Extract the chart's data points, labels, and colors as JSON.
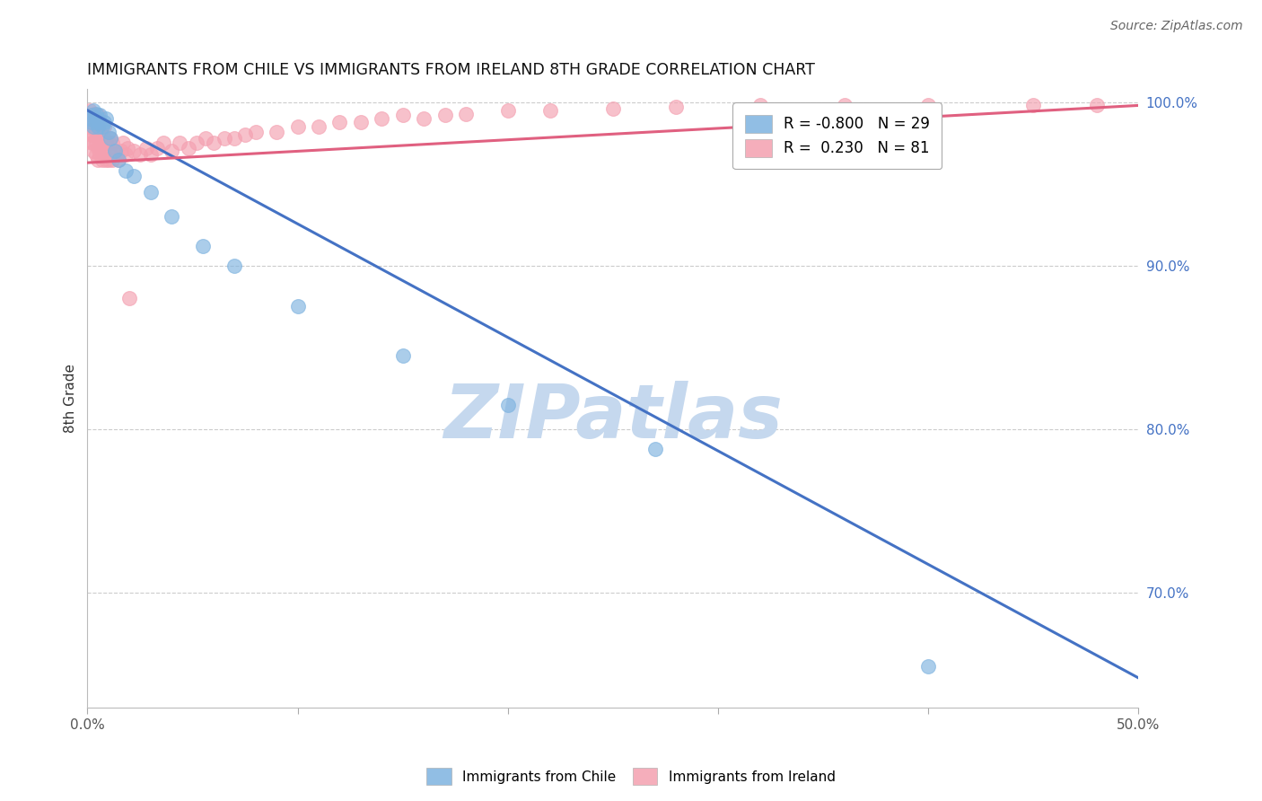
{
  "title": "IMMIGRANTS FROM CHILE VS IMMIGRANTS FROM IRELAND 8TH GRADE CORRELATION CHART",
  "source": "Source: ZipAtlas.com",
  "ylabel": "8th Grade",
  "xlim": [
    0.0,
    0.5
  ],
  "ylim": [
    0.63,
    1.008
  ],
  "yticks": [
    0.7,
    0.8,
    0.9,
    1.0
  ],
  "ytick_labels": [
    "70.0%",
    "80.0%",
    "90.0%",
    "100.0%"
  ],
  "xticks": [
    0.0,
    0.1,
    0.2,
    0.3,
    0.4,
    0.5
  ],
  "xtick_labels": [
    "0.0%",
    "",
    "",
    "",
    "",
    "50.0%"
  ],
  "chile_color": "#7EB3E0",
  "ireland_color": "#F4A0B0",
  "chile_line_color": "#4472C4",
  "ireland_line_color": "#E06080",
  "watermark": "ZIPatlas",
  "watermark_color": "#C5D8EE",
  "legend_chile_label": "R = -0.800   N = 29",
  "legend_ireland_label": "R =  0.230   N = 81",
  "chile_line_x": [
    0.0,
    0.5
  ],
  "chile_line_y": [
    0.995,
    0.648
  ],
  "ireland_line_x": [
    0.0,
    0.5
  ],
  "ireland_line_y": [
    0.963,
    0.998
  ],
  "chile_x": [
    0.001,
    0.002,
    0.002,
    0.003,
    0.003,
    0.004,
    0.004,
    0.005,
    0.005,
    0.006,
    0.006,
    0.007,
    0.008,
    0.009,
    0.01,
    0.011,
    0.013,
    0.015,
    0.018,
    0.022,
    0.03,
    0.04,
    0.055,
    0.07,
    0.1,
    0.15,
    0.2,
    0.27,
    0.4
  ],
  "chile_y": [
    0.99,
    0.992,
    0.988,
    0.985,
    0.995,
    0.988,
    0.993,
    0.99,
    0.985,
    0.988,
    0.992,
    0.985,
    0.988,
    0.99,
    0.982,
    0.978,
    0.97,
    0.965,
    0.958,
    0.955,
    0.945,
    0.93,
    0.912,
    0.9,
    0.875,
    0.845,
    0.815,
    0.788,
    0.655
  ],
  "ireland_x": [
    0.001,
    0.001,
    0.001,
    0.002,
    0.002,
    0.002,
    0.002,
    0.003,
    0.003,
    0.003,
    0.003,
    0.003,
    0.004,
    0.004,
    0.004,
    0.004,
    0.005,
    0.005,
    0.005,
    0.005,
    0.005,
    0.006,
    0.006,
    0.006,
    0.007,
    0.007,
    0.007,
    0.008,
    0.008,
    0.008,
    0.009,
    0.009,
    0.01,
    0.01,
    0.011,
    0.011,
    0.012,
    0.012,
    0.013,
    0.014,
    0.015,
    0.016,
    0.017,
    0.018,
    0.019,
    0.02,
    0.022,
    0.025,
    0.028,
    0.03,
    0.033,
    0.036,
    0.04,
    0.044,
    0.048,
    0.052,
    0.056,
    0.06,
    0.065,
    0.07,
    0.075,
    0.08,
    0.09,
    0.1,
    0.11,
    0.12,
    0.13,
    0.14,
    0.15,
    0.16,
    0.17,
    0.18,
    0.2,
    0.22,
    0.25,
    0.28,
    0.32,
    0.36,
    0.4,
    0.45,
    0.48
  ],
  "ireland_y": [
    0.985,
    0.99,
    0.995,
    0.975,
    0.98,
    0.985,
    0.992,
    0.97,
    0.975,
    0.98,
    0.988,
    0.993,
    0.968,
    0.975,
    0.982,
    0.99,
    0.965,
    0.972,
    0.978,
    0.985,
    0.992,
    0.968,
    0.975,
    0.982,
    0.965,
    0.972,
    0.98,
    0.968,
    0.975,
    0.985,
    0.965,
    0.975,
    0.965,
    0.975,
    0.968,
    0.978,
    0.965,
    0.975,
    0.97,
    0.968,
    0.965,
    0.97,
    0.975,
    0.968,
    0.972,
    0.88,
    0.97,
    0.968,
    0.972,
    0.968,
    0.972,
    0.975,
    0.97,
    0.975,
    0.972,
    0.975,
    0.978,
    0.975,
    0.978,
    0.978,
    0.98,
    0.982,
    0.982,
    0.985,
    0.985,
    0.988,
    0.988,
    0.99,
    0.992,
    0.99,
    0.992,
    0.993,
    0.995,
    0.995,
    0.996,
    0.997,
    0.998,
    0.998,
    0.998,
    0.998,
    0.998
  ],
  "bottom_legend_labels": [
    "Immigrants from Chile",
    "Immigrants from Ireland"
  ]
}
